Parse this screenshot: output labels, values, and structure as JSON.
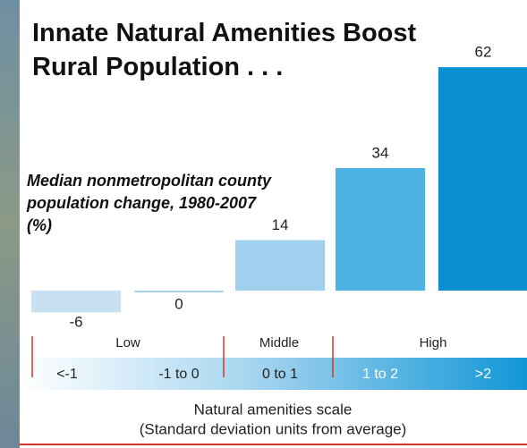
{
  "chart_data": {
    "type": "bar",
    "title": "Innate Natural Amenities Boost Rural Population . . .",
    "subtitle": "Median nonmetropolitan county population change, 1980-2007 (%)",
    "categories": [
      "<-1",
      "-1 to 0",
      "0 to 1",
      "1 to 2",
      ">2"
    ],
    "values": [
      -6,
      0,
      14,
      34,
      62
    ],
    "colors": [
      "#c7e1f3",
      "#a6d2ee",
      "#9fd1ef",
      "#4db3e4",
      "#0a8fd3"
    ],
    "groups": [
      "Low",
      "Middle",
      "High"
    ],
    "x_label": "Natural amenities scale",
    "x_label_note": "(Standard deviation units from average)"
  }
}
